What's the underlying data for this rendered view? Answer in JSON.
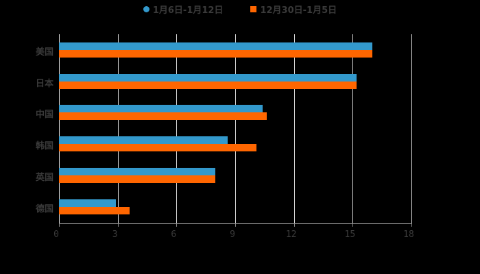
{
  "chart_data": {
    "type": "bar",
    "orientation": "horizontal",
    "title": "",
    "xlabel": "",
    "ylabel": "",
    "xlim": [
      0,
      18
    ],
    "xticks": [
      0,
      3,
      6,
      9,
      12,
      15,
      18
    ],
    "grid": true,
    "legend_position": "top",
    "categories": [
      "美国",
      "日本",
      "中国",
      "韩国",
      "英国",
      "德国"
    ],
    "series": [
      {
        "name": "1月6日-1月12日",
        "color": "#3399cc",
        "values": [
          16.0,
          15.2,
          10.4,
          8.6,
          8.0,
          2.9
        ]
      },
      {
        "name": "12月30日-1月5日",
        "color": "#ff6600",
        "values": [
          16.0,
          15.2,
          10.6,
          10.1,
          8.0,
          3.6
        ]
      }
    ]
  },
  "legend": {
    "s0": "1月6日-1月12日",
    "s1": "12月30日-1月5日"
  }
}
